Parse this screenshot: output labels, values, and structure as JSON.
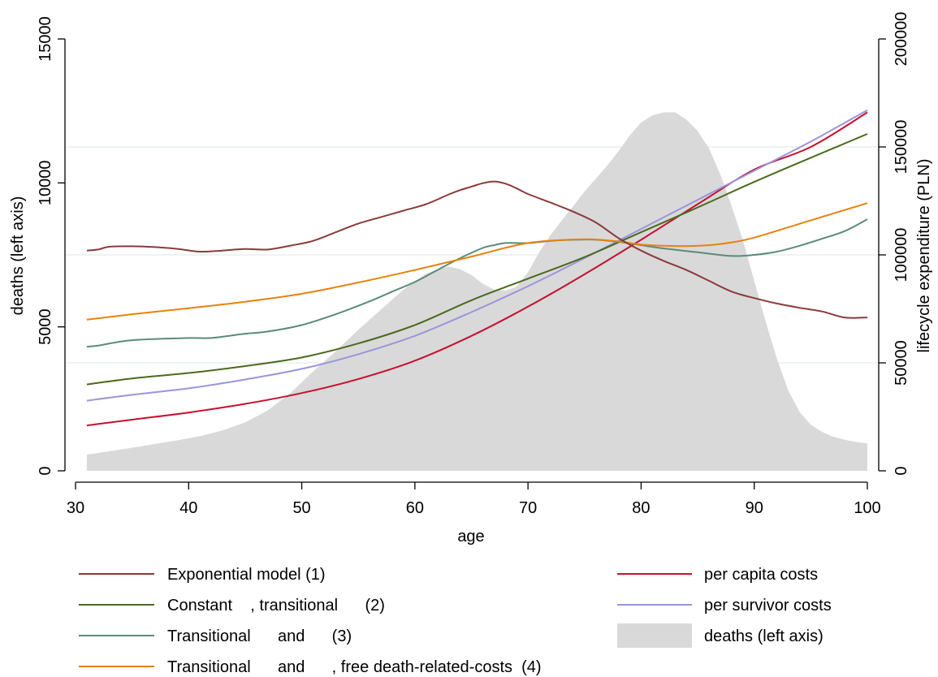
{
  "chart_data": {
    "type": "line",
    "xlabel": "age",
    "ylabel_left": "deaths (left axis)",
    "ylabel_right": "lifecycle expenditure (PLN)",
    "xlim": [
      30,
      100
    ],
    "ylim_left": [
      0,
      15000
    ],
    "ylim_right": [
      0,
      200000
    ],
    "x_ticks": [
      30,
      40,
      50,
      60,
      70,
      80,
      90,
      100
    ],
    "y_ticks_left": [
      0,
      5000,
      10000,
      15000
    ],
    "y_ticks_right": [
      0,
      50000,
      100000,
      150000,
      200000
    ],
    "grid": "horizontal at right-axis ticks",
    "legend_position": "bottom",
    "area": {
      "name": "deaths (left axis)",
      "axis": "left",
      "color": "#d9d9d9",
      "x": [
        31,
        33,
        35,
        37,
        39,
        41,
        43,
        45,
        47,
        49,
        51,
        53,
        55,
        57,
        59,
        61,
        62,
        63,
        64,
        65,
        66,
        67,
        68,
        69,
        70,
        71,
        72,
        73,
        74,
        75,
        76,
        77,
        78,
        79,
        80,
        81,
        82,
        83,
        84,
        85,
        86,
        87,
        88,
        89,
        90,
        91,
        92,
        93,
        94,
        95,
        96,
        97,
        98,
        99,
        100
      ],
      "y": [
        560,
        680,
        800,
        930,
        1060,
        1200,
        1400,
        1680,
        2100,
        2700,
        3450,
        4150,
        4900,
        5600,
        6300,
        6850,
        7000,
        7100,
        7000,
        6800,
        6500,
        6300,
        6250,
        6400,
        6900,
        7600,
        8200,
        8700,
        9200,
        9700,
        10150,
        10600,
        11100,
        11650,
        12100,
        12350,
        12450,
        12450,
        12200,
        11800,
        11200,
        10300,
        9200,
        8000,
        6600,
        5200,
        3900,
        2800,
        2050,
        1600,
        1350,
        1180,
        1080,
        1000,
        950
      ]
    },
    "series": [
      {
        "name": "Exponential model (1)",
        "axis": "right",
        "color": "#8b3a3a",
        "x": [
          31,
          32,
          33,
          35,
          37,
          39,
          41,
          43,
          45,
          47,
          49,
          51,
          53,
          55,
          57,
          59,
          61,
          63,
          64,
          65,
          66,
          67,
          68,
          69,
          70,
          72,
          74,
          76,
          78,
          80,
          82,
          84,
          86,
          88,
          90,
          92,
          94,
          96,
          98,
          100
        ],
        "y": [
          102000,
          102500,
          103800,
          104000,
          103600,
          102800,
          101500,
          102000,
          102700,
          102500,
          104300,
          106500,
          110500,
          114500,
          117500,
          120500,
          123500,
          128000,
          130000,
          131600,
          133200,
          134000,
          133000,
          130800,
          128200,
          124200,
          120000,
          115000,
          107800,
          102000,
          97200,
          93000,
          88000,
          83000,
          80000,
          77500,
          75500,
          73800,
          71000,
          71000
        ]
      },
      {
        "name": "Constant    , transitional      (2)",
        "axis": "right",
        "color": "#4a6a1e",
        "x": [
          31,
          35,
          40,
          45,
          50,
          55,
          60,
          65,
          70,
          75,
          80,
          85,
          90,
          95,
          100
        ],
        "y": [
          40000,
          42800,
          45300,
          48500,
          52500,
          59000,
          67500,
          79000,
          89000,
          99000,
          110500,
          122000,
          133800,
          145000,
          156000
        ]
      },
      {
        "name": "Transitional      and      (3)",
        "axis": "right",
        "color": "#5b8a7c",
        "x": [
          31,
          32,
          35,
          40,
          42,
          45,
          47,
          50,
          53,
          56,
          58,
          60,
          62,
          64,
          66,
          67,
          68,
          70,
          72,
          74,
          76,
          78,
          80,
          82,
          85,
          88,
          90,
          92,
          94,
          96,
          98,
          100
        ],
        "y": [
          57500,
          58000,
          60500,
          61500,
          61500,
          63500,
          64500,
          67500,
          72500,
          78500,
          83000,
          87500,
          93000,
          98500,
          103200,
          104500,
          105500,
          105500,
          106500,
          107000,
          107000,
          106000,
          104500,
          103000,
          101200,
          99500,
          100000,
          101500,
          104200,
          107500,
          111000,
          116500
        ]
      },
      {
        "name": "Transitional      and      , free death-related-costs  (4)",
        "axis": "right",
        "color": "#e8820c",
        "x": [
          31,
          35,
          40,
          45,
          50,
          55,
          60,
          65,
          70,
          75,
          78,
          80,
          82,
          84,
          86,
          88,
          90,
          95,
          100
        ],
        "y": [
          70000,
          72500,
          75300,
          78300,
          82000,
          87200,
          93000,
          99200,
          105500,
          107200,
          106200,
          104800,
          104200,
          104100,
          104500,
          105800,
          108000,
          116000,
          124000
        ]
      },
      {
        "name": "per capita costs",
        "axis": "right",
        "color": "#c8102e",
        "x": [
          31,
          35,
          40,
          45,
          50,
          55,
          60,
          65,
          70,
          75,
          80,
          85,
          90,
          95,
          100
        ],
        "y": [
          21000,
          23700,
          27000,
          31000,
          36000,
          42500,
          51000,
          62500,
          76000,
          91000,
          107000,
          123500,
          139500,
          150000,
          166000
        ]
      },
      {
        "name": "per survivor costs",
        "axis": "right",
        "color": "#9b95d9",
        "x": [
          31,
          35,
          40,
          45,
          50,
          55,
          60,
          65,
          70,
          75,
          80,
          85,
          90,
          95,
          100
        ],
        "y": [
          32500,
          35200,
          38200,
          42300,
          47200,
          54000,
          62500,
          73500,
          85500,
          98500,
          112000,
          125500,
          139000,
          152500,
          167000
        ]
      }
    ]
  },
  "legend": {
    "left": [
      {
        "label": "Exponential model (1)",
        "color": "#8b3a3a"
      },
      {
        "label": "Constant    , transitional      (2)",
        "color": "#4a6a1e"
      },
      {
        "label": "Transitional      and      (3)",
        "color": "#5b8a7c"
      },
      {
        "label": "Transitional      and      , free death-related-costs  (4)",
        "color": "#e8820c"
      }
    ],
    "right": [
      {
        "label": "per capita costs",
        "color": "#c8102e",
        "kind": "line"
      },
      {
        "label": "per survivor costs",
        "color": "#9b95d9",
        "kind": "line"
      },
      {
        "label": "deaths (left axis)",
        "color": "#d9d9d9",
        "kind": "area"
      }
    ]
  }
}
